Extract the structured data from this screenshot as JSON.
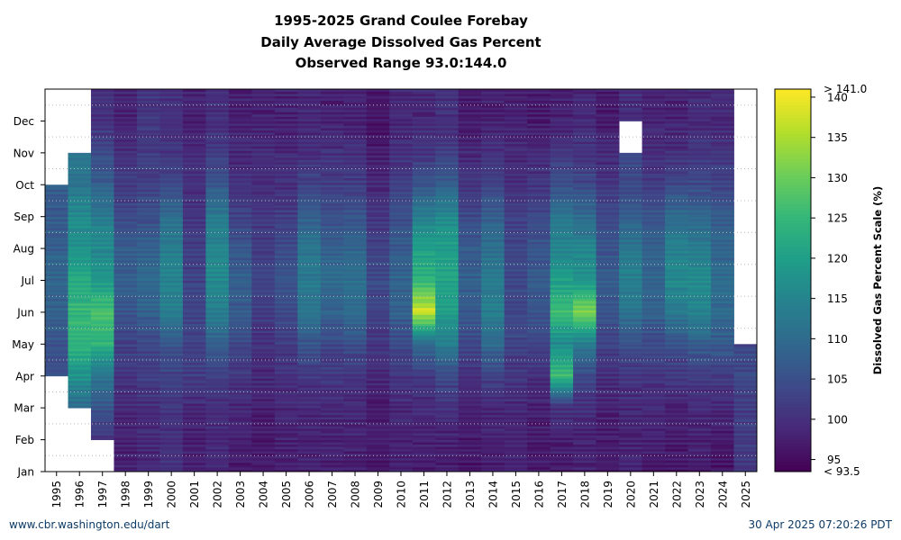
{
  "page": {
    "source_link": "www.cbr.washington.edu/dart",
    "timestamp": "30 Apr 2025 07:20:26 PDT"
  },
  "chart_data": {
    "type": "heatmap",
    "title": "1995-2025 Grand Coulee Forebay",
    "subtitle": "Daily Average Dissolved Gas Percent",
    "range_text": "Observed Range 93.0:144.0",
    "xlabel": "",
    "ylabel": "",
    "colorbar_label": "Dissolved Gas Percent Scale (%)",
    "colorbar_ticks": [
      95,
      100,
      105,
      110,
      115,
      120,
      125,
      130,
      135,
      140
    ],
    "colorbar_top_label": "> 141.0",
    "colorbar_bottom_label": "< 93.5",
    "color_range": [
      93.5,
      141.0
    ],
    "colormap": "viridis",
    "grid": true,
    "years": [
      "1995",
      "1996",
      "1997",
      "1998",
      "1999",
      "2000",
      "2001",
      "2002",
      "2003",
      "2004",
      "2005",
      "2006",
      "2007",
      "2008",
      "2009",
      "2010",
      "2011",
      "2012",
      "2013",
      "2014",
      "2015",
      "2016",
      "2017",
      "2018",
      "2019",
      "2020",
      "2021",
      "2022",
      "2023",
      "2024",
      "2025"
    ],
    "months": [
      "Jan",
      "Feb",
      "Mar",
      "Apr",
      "May",
      "Jun",
      "Jul",
      "Aug",
      "Sep",
      "Oct",
      "Nov",
      "Dec"
    ],
    "monthly_values": [
      [
        null,
        null,
        null,
        105,
        106,
        108,
        109,
        108,
        107,
        null,
        null,
        null
      ],
      [
        null,
        null,
        110,
        118,
        124,
        125,
        122,
        118,
        116,
        112,
        null,
        null
      ],
      [
        null,
        101,
        106,
        112,
        124,
        127,
        118,
        116,
        113,
        108,
        104,
        100
      ],
      [
        98,
        98,
        99,
        101,
        103,
        106,
        108,
        107,
        104,
        102,
        100,
        98
      ],
      [
        99,
        99,
        100,
        102,
        104,
        108,
        110,
        108,
        105,
        103,
        102,
        101
      ],
      [
        100,
        100,
        101,
        103,
        106,
        114,
        115,
        114,
        110,
        104,
        101,
        100
      ],
      [
        98,
        98,
        99,
        102,
        103,
        104,
        103,
        102,
        101,
        100,
        99,
        98
      ],
      [
        99,
        99,
        100,
        102,
        108,
        114,
        116,
        115,
        113,
        106,
        102,
        100
      ],
      [
        97,
        98,
        99,
        101,
        104,
        107,
        108,
        106,
        103,
        100,
        99,
        98
      ],
      [
        97,
        97,
        98,
        99,
        100,
        102,
        103,
        102,
        101,
        100,
        99,
        98
      ],
      [
        97,
        98,
        99,
        100,
        102,
        104,
        106,
        104,
        102,
        100,
        99,
        98
      ],
      [
        98,
        98,
        99,
        101,
        106,
        112,
        113,
        112,
        108,
        103,
        100,
        99
      ],
      [
        98,
        98,
        99,
        101,
        104,
        108,
        110,
        108,
        105,
        102,
        100,
        98
      ],
      [
        97,
        98,
        99,
        101,
        105,
        110,
        111,
        109,
        106,
        102,
        100,
        98
      ],
      [
        96,
        97,
        97,
        99,
        101,
        103,
        104,
        103,
        101,
        99,
        97,
        96
      ],
      [
        98,
        98,
        99,
        101,
        104,
        108,
        109,
        107,
        105,
        102,
        100,
        99
      ],
      [
        97,
        98,
        99,
        102,
        110,
        138,
        124,
        120,
        114,
        106,
        101,
        99
      ],
      [
        97,
        98,
        100,
        104,
        114,
        120,
        121,
        120,
        116,
        108,
        102,
        100
      ],
      [
        96,
        97,
        98,
        100,
        104,
        107,
        108,
        107,
        104,
        101,
        99,
        97
      ],
      [
        97,
        98,
        99,
        103,
        110,
        114,
        113,
        111,
        108,
        103,
        100,
        98
      ],
      [
        98,
        98,
        99,
        101,
        103,
        104,
        104,
        103,
        102,
        100,
        99,
        98
      ],
      [
        97,
        97,
        98,
        100,
        103,
        106,
        107,
        106,
        104,
        101,
        99,
        97
      ],
      [
        97,
        98,
        100,
        126,
        116,
        126,
        120,
        115,
        112,
        105,
        101,
        98
      ],
      [
        98,
        98,
        100,
        104,
        114,
        132,
        118,
        115,
        110,
        104,
        101,
        99
      ],
      [
        97,
        97,
        98,
        100,
        103,
        106,
        107,
        106,
        104,
        101,
        99,
        97
      ],
      [
        98,
        98,
        99,
        101,
        105,
        112,
        114,
        112,
        108,
        104,
        null,
        100
      ],
      [
        97,
        98,
        99,
        101,
        104,
        108,
        109,
        108,
        106,
        102,
        100,
        98
      ],
      [
        96,
        97,
        98,
        101,
        106,
        113,
        116,
        114,
        110,
        104,
        100,
        98
      ],
      [
        97,
        98,
        99,
        102,
        108,
        115,
        116,
        113,
        109,
        104,
        101,
        99
      ],
      [
        96,
        97,
        99,
        102,
        107,
        110,
        110,
        109,
        107,
        103,
        101,
        99
      ],
      [
        101,
        102,
        102,
        104,
        null,
        null,
        null,
        null,
        null,
        null,
        null,
        null
      ]
    ]
  }
}
